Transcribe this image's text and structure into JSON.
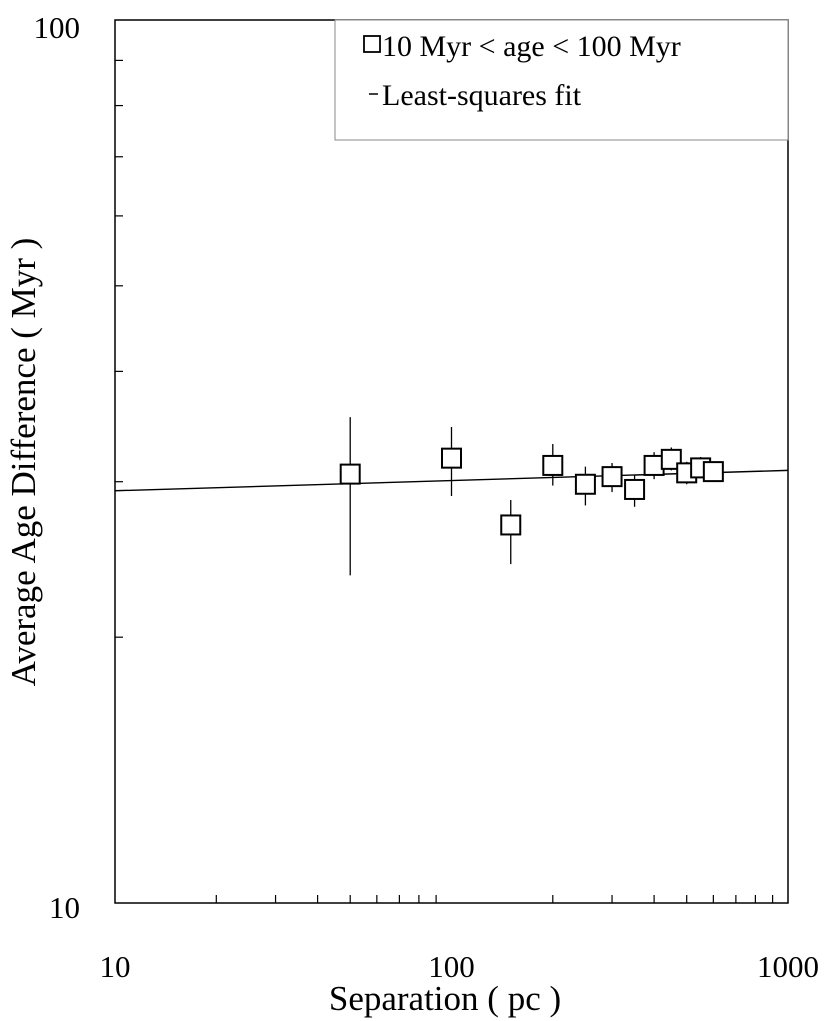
{
  "chart_data": {
    "type": "scatter",
    "xlabel": "Separation ( pc )",
    "ylabel": "Average Age Difference ( Myr )",
    "xscale": "log",
    "yscale": "log",
    "xlim": [
      10,
      1000
    ],
    "ylim": [
      10,
      100
    ],
    "x_tick_labels": [
      "10",
      "100",
      "1000"
    ],
    "y_tick_labels": [
      "10",
      "100"
    ],
    "grid": false,
    "legend_position": "top-right",
    "legend": [
      "10 Myr < age < 100 Myr",
      "Least-squares fit"
    ],
    "series": [
      {
        "name": "10 Myr < age < 100 Myr",
        "marker": "open-square",
        "points": [
          {
            "x": 50,
            "y": 30.6,
            "ylow": 23.5,
            "yhigh": 35.5
          },
          {
            "x": 100,
            "y": 31.9,
            "ylow": 28.9,
            "yhigh": 34.6
          },
          {
            "x": 150,
            "y": 26.8,
            "ylow": 24.2,
            "yhigh": 28.6
          },
          {
            "x": 200,
            "y": 31.3,
            "ylow": 29.7,
            "yhigh": 33.1
          },
          {
            "x": 250,
            "y": 29.8,
            "ylow": 28.2,
            "yhigh": 31.2
          },
          {
            "x": 300,
            "y": 30.4,
            "ylow": 29.2,
            "yhigh": 31.5
          },
          {
            "x": 350,
            "y": 29.4,
            "ylow": 28.1,
            "yhigh": 30.5
          },
          {
            "x": 400,
            "y": 31.3,
            "ylow": 30.2,
            "yhigh": 32.4
          },
          {
            "x": 450,
            "y": 31.8,
            "ylow": 30.9,
            "yhigh": 32.8
          },
          {
            "x": 500,
            "y": 30.7,
            "ylow": 29.8,
            "yhigh": 31.6
          },
          {
            "x": 550,
            "y": 31.1,
            "ylow": 30.3,
            "yhigh": 32.0
          },
          {
            "x": 600,
            "y": 30.8,
            "ylow": 30.0,
            "yhigh": 31.6
          }
        ]
      },
      {
        "name": "Least-squares fit",
        "type": "line",
        "points": [
          {
            "x": 10,
            "y": 29.3
          },
          {
            "x": 1000,
            "y": 30.9
          }
        ]
      }
    ]
  }
}
